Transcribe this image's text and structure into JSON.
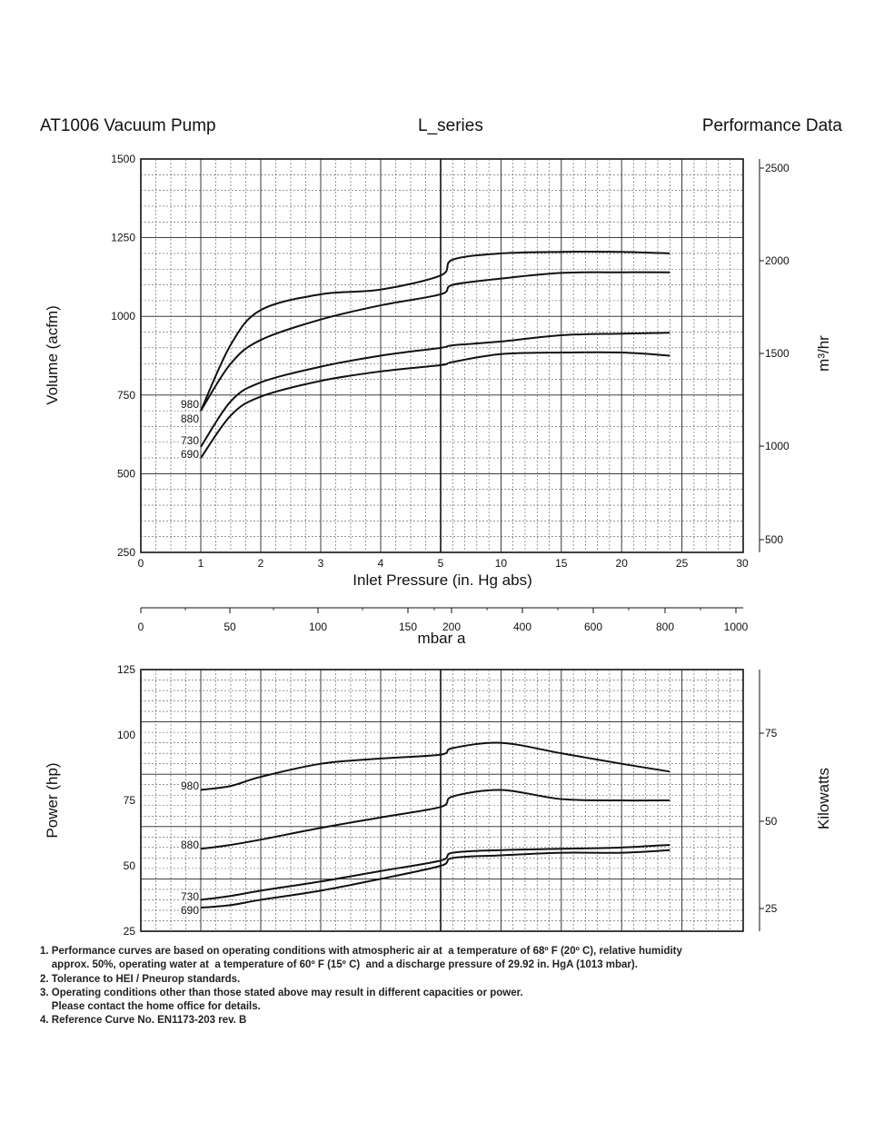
{
  "header": {
    "left": "AT1006 Vacuum Pump",
    "center": "L_series",
    "right": "Performance Data"
  },
  "chart_data": [
    {
      "type": "line",
      "title": "",
      "xlabel": "Inlet Pressure (in. Hg abs)",
      "ylabel": "Volume (acfm)",
      "ylabel_right": "m³/hr",
      "x_ticks": [
        "0",
        "1",
        "2",
        "3",
        "4",
        "5",
        "10",
        "15",
        "20",
        "25",
        "30"
      ],
      "y_ticks": [
        "250",
        "500",
        "750",
        "1000",
        "1250",
        "1500"
      ],
      "y_ticks_right": [
        "500",
        "1000",
        "1500",
        "2000",
        "2500"
      ],
      "ylim": [
        250,
        1500
      ],
      "x_scale": "linear 0–5, then linear 5–30 (compressed)",
      "grid": true,
      "series": [
        {
          "name": "980",
          "points": [
            [
              1,
              700
            ],
            [
              1.5,
              910
            ],
            [
              2,
              1020
            ],
            [
              3,
              1070
            ],
            [
              4,
              1085
            ],
            [
              5,
              1130
            ],
            [
              6,
              1180
            ],
            [
              10,
              1200
            ],
            [
              15,
              1205
            ],
            [
              20,
              1205
            ],
            [
              24,
              1200
            ]
          ]
        },
        {
          "name": "880",
          "points": [
            [
              1,
              700
            ],
            [
              1.5,
              850
            ],
            [
              2,
              925
            ],
            [
              3,
              990
            ],
            [
              4,
              1035
            ],
            [
              5,
              1070
            ],
            [
              6,
              1100
            ],
            [
              10,
              1120
            ],
            [
              15,
              1138
            ],
            [
              20,
              1140
            ],
            [
              24,
              1140
            ]
          ]
        },
        {
          "name": "730",
          "points": [
            [
              1,
              585
            ],
            [
              1.5,
              730
            ],
            [
              2,
              790
            ],
            [
              3,
              840
            ],
            [
              4,
              875
            ],
            [
              5,
              900
            ],
            [
              6,
              908
            ],
            [
              10,
              920
            ],
            [
              15,
              940
            ],
            [
              20,
              945
            ],
            [
              24,
              948
            ]
          ]
        },
        {
          "name": "690",
          "points": [
            [
              1,
              550
            ],
            [
              1.5,
              685
            ],
            [
              2,
              745
            ],
            [
              3,
              795
            ],
            [
              4,
              825
            ],
            [
              5,
              845
            ],
            [
              6,
              855
            ],
            [
              10,
              880
            ],
            [
              15,
              885
            ],
            [
              20,
              885
            ],
            [
              24,
              875
            ]
          ]
        }
      ]
    },
    {
      "type": "axis",
      "xlabel": "mbar a",
      "ticks": [
        "0",
        "50",
        "100",
        "150",
        "200",
        "400",
        "600",
        "800",
        "1000"
      ]
    },
    {
      "type": "line",
      "title": "",
      "xlabel": "",
      "ylabel": "Power (hp)",
      "ylabel_right": "Kilowatts",
      "y_ticks": [
        "25",
        "50",
        "75",
        "100",
        "125"
      ],
      "y_ticks_right": [
        "25",
        "50",
        "75"
      ],
      "ylim": [
        25,
        125
      ],
      "grid": true,
      "series": [
        {
          "name": "980",
          "points": [
            [
              1,
              79
            ],
            [
              1.5,
              80.5
            ],
            [
              2,
              84
            ],
            [
              3,
              89
            ],
            [
              4,
              91
            ],
            [
              5,
              92.5
            ],
            [
              6,
              95
            ],
            [
              10,
              97
            ],
            [
              15,
              93
            ],
            [
              20,
              89
            ],
            [
              24,
              86
            ]
          ]
        },
        {
          "name": "880",
          "points": [
            [
              1,
              56.5
            ],
            [
              1.5,
              58
            ],
            [
              2,
              60
            ],
            [
              3,
              64.5
            ],
            [
              4,
              68.5
            ],
            [
              5,
              72.5
            ],
            [
              6,
              76.5
            ],
            [
              10,
              79
            ],
            [
              15,
              75.5
            ],
            [
              20,
              75
            ],
            [
              24,
              75
            ]
          ]
        },
        {
          "name": "730",
          "points": [
            [
              1,
              37
            ],
            [
              1.5,
              38.5
            ],
            [
              2,
              40.5
            ],
            [
              3,
              44
            ],
            [
              4,
              48
            ],
            [
              5,
              52
            ],
            [
              6,
              55
            ],
            [
              10,
              56
            ],
            [
              15,
              56.5
            ],
            [
              20,
              57
            ],
            [
              24,
              58
            ]
          ]
        },
        {
          "name": "690",
          "points": [
            [
              1,
              34
            ],
            [
              1.5,
              35
            ],
            [
              2,
              37
            ],
            [
              3,
              40.5
            ],
            [
              4,
              45
            ],
            [
              5,
              50
            ],
            [
              6,
              53
            ],
            [
              10,
              54
            ],
            [
              15,
              55
            ],
            [
              20,
              55
            ],
            [
              24,
              56
            ]
          ]
        }
      ]
    }
  ],
  "notes": [
    "1. Performance curves are based on operating conditions with atmospheric air at  a temperature of 68º F (20º C), relative humidity",
    "    approx. 50%, operating water at  a temperature of 60º F (15º C)  and a discharge pressure of 29.92 in. HgA (1013 mbar).",
    "2. Tolerance to HEI / Pneurop standards.",
    "3. Operating conditions other than those stated above may result in different capacities or power.",
    "    Please contact the home office for details.",
    "4. Reference Curve No. EN1173-203 rev. B"
  ]
}
